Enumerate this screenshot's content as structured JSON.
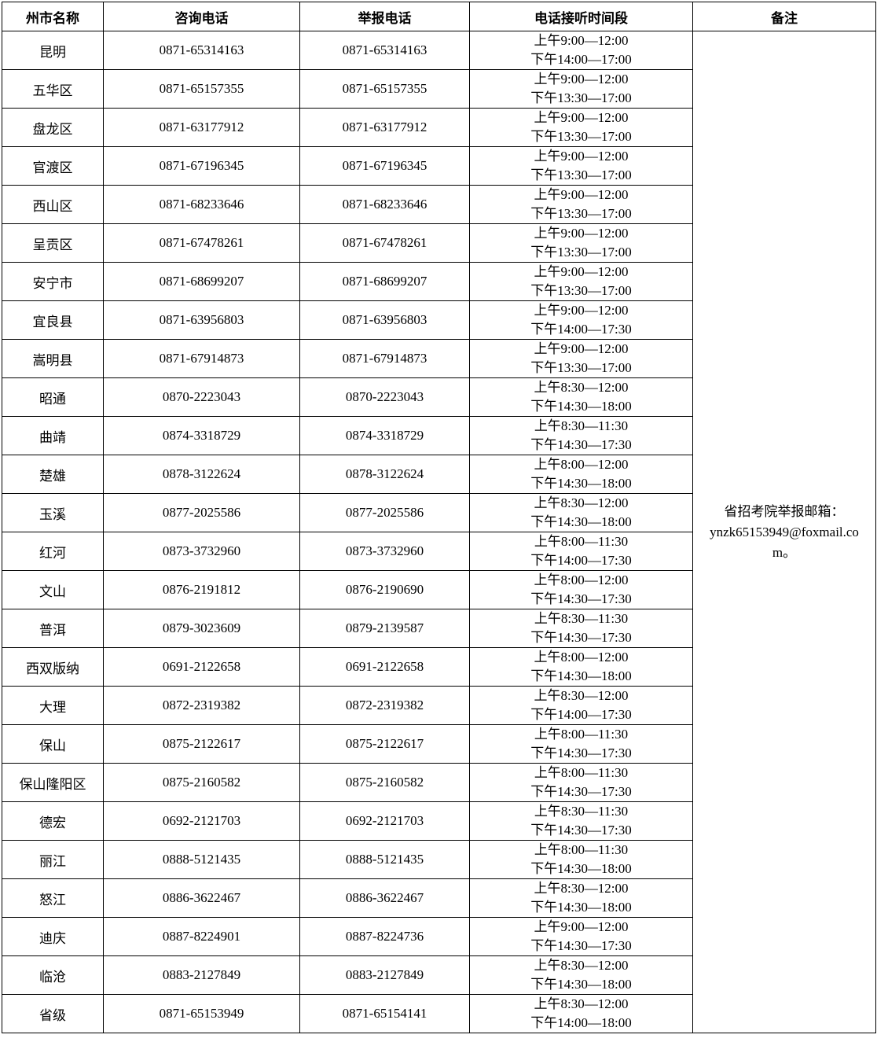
{
  "table": {
    "headers": [
      "州市名称",
      "咨询电话",
      "举报电话",
      "电话接听时间段",
      "备注"
    ],
    "remark": {
      "label": "省招考院举报邮箱：",
      "email": "ynzk65153949@foxmail.com。"
    },
    "rows": [
      {
        "name": "昆明",
        "consult": "0871-65314163",
        "report": "0871-65314163",
        "am": "上午9:00—12:00",
        "pm": "下午14:00—17:00"
      },
      {
        "name": "五华区",
        "consult": "0871-65157355",
        "report": "0871-65157355",
        "am": "上午9:00—12:00",
        "pm": "下午13:30—17:00"
      },
      {
        "name": "盘龙区",
        "consult": "0871-63177912",
        "report": "0871-63177912",
        "am": "上午9:00—12:00",
        "pm": "下午13:30—17:00"
      },
      {
        "name": "官渡区",
        "consult": "0871-67196345",
        "report": "0871-67196345",
        "am": "上午9:00—12:00",
        "pm": "下午13:30—17:00"
      },
      {
        "name": "西山区",
        "consult": "0871-68233646",
        "report": "0871-68233646",
        "am": "上午9:00—12:00",
        "pm": "下午13:30—17:00"
      },
      {
        "name": "呈贡区",
        "consult": "0871-67478261",
        "report": "0871-67478261",
        "am": "上午9:00—12:00",
        "pm": "下午13:30—17:00"
      },
      {
        "name": "安宁市",
        "consult": "0871-68699207",
        "report": "0871-68699207",
        "am": "上午9:00—12:00",
        "pm": "下午13:30—17:00"
      },
      {
        "name": "宜良县",
        "consult": "0871-63956803",
        "report": "0871-63956803",
        "am": "上午9:00—12:00",
        "pm": "下午14:00—17:30"
      },
      {
        "name": "嵩明县",
        "consult": "0871-67914873",
        "report": "0871-67914873",
        "am": "上午9:00—12:00",
        "pm": "下午13:30—17:00"
      },
      {
        "name": "昭通",
        "consult": "0870-2223043",
        "report": "0870-2223043",
        "am": "上午8:30—12:00",
        "pm": "下午14:30—18:00"
      },
      {
        "name": "曲靖",
        "consult": "0874-3318729",
        "report": "0874-3318729",
        "am": "上午8:30—11:30",
        "pm": "下午14:30—17:30"
      },
      {
        "name": "楚雄",
        "consult": "0878-3122624",
        "report": "0878-3122624",
        "am": "上午8:00—12:00",
        "pm": "下午14:30—18:00"
      },
      {
        "name": "玉溪",
        "consult": "0877-2025586",
        "report": "0877-2025586",
        "am": "上午8:30—12:00",
        "pm": "下午14:30—18:00"
      },
      {
        "name": "红河",
        "consult": "0873-3732960",
        "report": "0873-3732960",
        "am": "上午8:00—11:30",
        "pm": "下午14:00—17:30"
      },
      {
        "name": "文山",
        "consult": "0876-2191812",
        "report": "0876-2190690",
        "am": "上午8:00—12:00",
        "pm": "下午14:30—17:30"
      },
      {
        "name": "普洱",
        "consult": "0879-3023609",
        "report": "0879-2139587",
        "am": "上午8:30—11:30",
        "pm": "下午14:30—17:30"
      },
      {
        "name": "西双版纳",
        "consult": "0691-2122658",
        "report": "0691-2122658",
        "am": "上午8:00—12:00",
        "pm": "下午14:30—18:00"
      },
      {
        "name": "大理",
        "consult": "0872-2319382",
        "report": "0872-2319382",
        "am": "上午8:30—12:00",
        "pm": "下午14:00—17:30"
      },
      {
        "name": "保山",
        "consult": "0875-2122617",
        "report": "0875-2122617",
        "am": "上午8:00—11:30",
        "pm": "下午14:30—17:30"
      },
      {
        "name": "保山隆阳区",
        "consult": "0875-2160582",
        "report": "0875-2160582",
        "am": "上午8:00—11:30",
        "pm": "下午14:30—17:30"
      },
      {
        "name": "德宏",
        "consult": "0692-2121703",
        "report": "0692-2121703",
        "am": "上午8:30—11:30",
        "pm": "下午14:30—17:30"
      },
      {
        "name": "丽江",
        "consult": "0888-5121435",
        "report": "0888-5121435",
        "am": "上午8:00—11:30",
        "pm": "下午14:30—18:00"
      },
      {
        "name": "怒江",
        "consult": "0886-3622467",
        "report": "0886-3622467",
        "am": "上午8:30—12:00",
        "pm": "下午14:30—18:00"
      },
      {
        "name": "迪庆",
        "consult": "0887-8224901",
        "report": "0887-8224736",
        "am": "上午9:00—12:00",
        "pm": "下午14:30—17:30"
      },
      {
        "name": "临沧",
        "consult": "0883-2127849",
        "report": "0883-2127849",
        "am": "上午8:30—12:00",
        "pm": "下午14:30—18:00"
      },
      {
        "name": "省级",
        "consult": "0871-65153949",
        "report": "0871-65154141",
        "am": "上午8:30—12:00",
        "pm": "下午14:00—18:00"
      }
    ]
  }
}
